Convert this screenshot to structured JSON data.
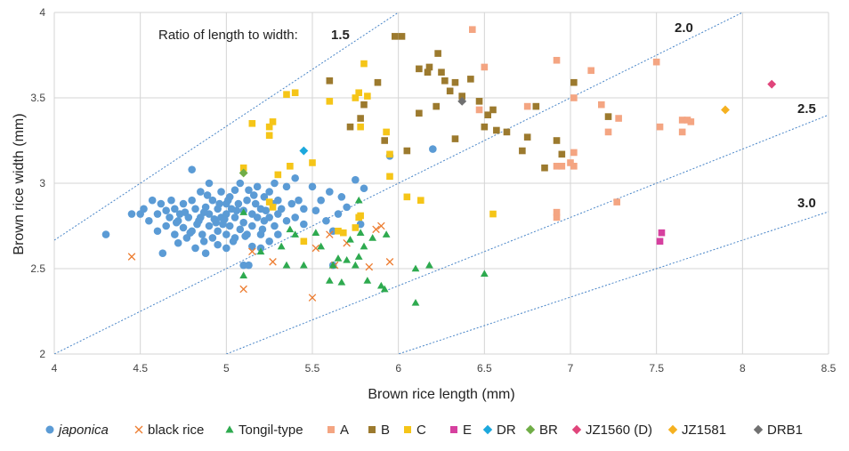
{
  "chart_data": {
    "type": "scatter",
    "xlabel": "Brown rice length (mm)",
    "ylabel": "Brown rice width (mm)",
    "xlim": [
      4,
      8.5
    ],
    "ylim": [
      2,
      4
    ],
    "xticks": [
      "4",
      "4.5",
      "5",
      "5.5",
      "6",
      "6.5",
      "7",
      "7.5",
      "8",
      "8.5"
    ],
    "yticks": [
      "2",
      "2.5",
      "3",
      "3.5",
      "4"
    ],
    "grid": true,
    "legend_position": "bottom",
    "ratio_prefix": "Ratio of length to width: ",
    "ratio_lines": [
      {
        "ratio": 1.5,
        "label": "1.5"
      },
      {
        "ratio": 2.0,
        "label": "2.0"
      },
      {
        "ratio": 2.5,
        "label": "2.5"
      },
      {
        "ratio": 3.0,
        "label": "3.0"
      }
    ],
    "series": [
      {
        "name": "japonica",
        "italic": true,
        "marker": "circle",
        "color": "#5B9BD5",
        "points": [
          [
            4.3,
            2.7
          ],
          [
            4.45,
            2.82
          ],
          [
            4.5,
            2.82
          ],
          [
            4.52,
            2.85
          ],
          [
            4.55,
            2.78
          ],
          [
            4.57,
            2.9
          ],
          [
            4.6,
            2.82
          ],
          [
            4.6,
            2.72
          ],
          [
            4.62,
            2.88
          ],
          [
            4.63,
            2.59
          ],
          [
            4.65,
            2.75
          ],
          [
            4.65,
            2.84
          ],
          [
            4.67,
            2.8
          ],
          [
            4.68,
            2.9
          ],
          [
            4.7,
            2.85
          ],
          [
            4.7,
            2.7
          ],
          [
            4.72,
            2.78
          ],
          [
            4.72,
            2.65
          ],
          [
            4.73,
            2.82
          ],
          [
            4.75,
            2.88
          ],
          [
            4.75,
            2.74
          ],
          [
            4.77,
            2.68
          ],
          [
            4.78,
            2.8
          ],
          [
            4.8,
            3.08
          ],
          [
            4.8,
            2.9
          ],
          [
            4.8,
            2.72
          ],
          [
            4.82,
            2.85
          ],
          [
            4.82,
            2.62
          ],
          [
            4.83,
            2.76
          ],
          [
            4.85,
            2.8
          ],
          [
            4.85,
            2.95
          ],
          [
            4.86,
            2.7
          ],
          [
            4.87,
            2.66
          ],
          [
            4.88,
            2.86
          ],
          [
            4.88,
            2.59
          ],
          [
            4.9,
            2.82
          ],
          [
            4.9,
            2.75
          ],
          [
            4.9,
            3.0
          ],
          [
            4.92,
            2.9
          ],
          [
            4.92,
            2.68
          ],
          [
            4.93,
            2.79
          ],
          [
            4.95,
            2.85
          ],
          [
            4.95,
            2.72
          ],
          [
            4.95,
            2.64
          ],
          [
            4.97,
            2.95
          ],
          [
            4.97,
            2.8
          ],
          [
            4.98,
            2.76
          ],
          [
            5.0,
            2.88
          ],
          [
            5.0,
            2.7
          ],
          [
            5.0,
            2.82
          ],
          [
            5.0,
            2.62
          ],
          [
            5.02,
            2.92
          ],
          [
            5.02,
            2.75
          ],
          [
            5.03,
            2.85
          ],
          [
            5.05,
            2.8
          ],
          [
            5.05,
            2.96
          ],
          [
            5.05,
            2.68
          ],
          [
            5.07,
            2.88
          ],
          [
            5.08,
            2.73
          ],
          [
            5.08,
            3.0
          ],
          [
            5.1,
            2.84
          ],
          [
            5.1,
            2.77
          ],
          [
            5.1,
            2.52
          ],
          [
            5.12,
            2.9
          ],
          [
            5.12,
            2.7
          ],
          [
            5.13,
            2.96
          ],
          [
            5.15,
            2.82
          ],
          [
            5.15,
            2.75
          ],
          [
            5.15,
            2.63
          ],
          [
            5.17,
            2.88
          ],
          [
            5.18,
            2.8
          ],
          [
            5.18,
            2.98
          ],
          [
            5.2,
            2.85
          ],
          [
            5.2,
            2.7
          ],
          [
            5.2,
            2.62
          ],
          [
            5.22,
            2.92
          ],
          [
            5.22,
            2.78
          ],
          [
            5.23,
            2.84
          ],
          [
            5.25,
            2.8
          ],
          [
            5.25,
            2.95
          ],
          [
            5.25,
            2.66
          ],
          [
            5.27,
            2.88
          ],
          [
            5.28,
            2.75
          ],
          [
            5.28,
            3.0
          ],
          [
            5.3,
            2.82
          ],
          [
            5.3,
            2.9
          ],
          [
            5.3,
            2.7
          ],
          [
            5.32,
            2.85
          ],
          [
            5.35,
            2.78
          ],
          [
            5.35,
            2.98
          ],
          [
            5.38,
            2.88
          ],
          [
            5.4,
            3.03
          ],
          [
            5.4,
            2.8
          ],
          [
            5.42,
            2.9
          ],
          [
            5.45,
            2.85
          ],
          [
            5.45,
            2.76
          ],
          [
            5.5,
            2.98
          ],
          [
            5.52,
            2.84
          ],
          [
            5.55,
            2.9
          ],
          [
            5.58,
            2.78
          ],
          [
            5.6,
            2.95
          ],
          [
            5.62,
            2.72
          ],
          [
            5.65,
            2.82
          ],
          [
            5.67,
            2.92
          ],
          [
            5.7,
            2.86
          ],
          [
            5.75,
            3.02
          ],
          [
            5.78,
            2.76
          ],
          [
            5.8,
            2.97
          ],
          [
            5.62,
            2.52
          ],
          [
            5.95,
            3.16
          ],
          [
            6.2,
            3.2
          ],
          [
            5.13,
            2.52
          ],
          [
            4.84,
            2.78
          ],
          [
            4.96,
            2.88
          ],
          [
            5.04,
            2.66
          ],
          [
            4.76,
            2.83
          ],
          [
            4.89,
            2.93
          ],
          [
            5.06,
            2.84
          ],
          [
            4.94,
            2.77
          ],
          [
            5.11,
            2.69
          ],
          [
            4.99,
            2.79
          ],
          [
            4.71,
            2.77
          ],
          [
            5.16,
            2.93
          ],
          [
            4.87,
            2.83
          ],
          [
            5.01,
            2.9
          ],
          [
            4.79,
            2.71
          ],
          [
            5.21,
            2.73
          ]
        ]
      },
      {
        "name": "black rice",
        "marker": "x",
        "color": "#ED7D31",
        "points": [
          [
            4.45,
            2.57
          ],
          [
            5.1,
            2.38
          ],
          [
            5.15,
            2.6
          ],
          [
            5.27,
            2.54
          ],
          [
            5.5,
            2.33
          ],
          [
            5.52,
            2.62
          ],
          [
            5.6,
            2.7
          ],
          [
            5.63,
            2.52
          ],
          [
            5.7,
            2.65
          ],
          [
            5.83,
            2.51
          ],
          [
            5.87,
            2.73
          ],
          [
            5.9,
            2.75
          ],
          [
            5.95,
            2.54
          ]
        ]
      },
      {
        "name": "Tongil-type",
        "marker": "triangle",
        "color": "#2EAA4F",
        "points": [
          [
            5.1,
            2.46
          ],
          [
            5.1,
            2.83
          ],
          [
            5.2,
            2.6
          ],
          [
            5.32,
            2.63
          ],
          [
            5.35,
            2.52
          ],
          [
            5.37,
            2.73
          ],
          [
            5.4,
            2.7
          ],
          [
            5.45,
            2.52
          ],
          [
            5.52,
            2.71
          ],
          [
            5.55,
            2.63
          ],
          [
            5.6,
            2.43
          ],
          [
            5.62,
            2.52
          ],
          [
            5.65,
            2.56
          ],
          [
            5.67,
            2.42
          ],
          [
            5.7,
            2.55
          ],
          [
            5.72,
            2.67
          ],
          [
            5.75,
            2.52
          ],
          [
            5.77,
            2.57
          ],
          [
            5.78,
            2.71
          ],
          [
            5.8,
            2.63
          ],
          [
            5.82,
            2.43
          ],
          [
            5.85,
            2.68
          ],
          [
            5.9,
            2.4
          ],
          [
            5.92,
            2.38
          ],
          [
            5.93,
            2.7
          ],
          [
            6.1,
            2.5
          ],
          [
            6.1,
            2.3
          ],
          [
            6.18,
            2.52
          ],
          [
            6.5,
            2.47
          ],
          [
            5.77,
            2.9
          ]
        ]
      },
      {
        "name": "A",
        "marker": "square",
        "color": "#F4A582",
        "points": [
          [
            6.43,
            3.9
          ],
          [
            6.5,
            3.68
          ],
          [
            6.47,
            3.43
          ],
          [
            6.75,
            3.45
          ],
          [
            6.92,
            3.72
          ],
          [
            7.02,
            3.5
          ],
          [
            7.12,
            3.66
          ],
          [
            7.18,
            3.46
          ],
          [
            7.22,
            3.3
          ],
          [
            7.28,
            3.38
          ],
          [
            7.27,
            2.89
          ],
          [
            6.92,
            3.1
          ],
          [
            6.95,
            3.1
          ],
          [
            7.0,
            3.12
          ],
          [
            7.02,
            3.18
          ],
          [
            7.02,
            3.1
          ],
          [
            6.92,
            2.8
          ],
          [
            6.92,
            2.83
          ],
          [
            7.5,
            3.71
          ],
          [
            7.52,
            3.33
          ],
          [
            7.65,
            3.3
          ],
          [
            7.65,
            3.37
          ],
          [
            7.68,
            3.37
          ],
          [
            7.7,
            3.36
          ]
        ]
      },
      {
        "name": "B",
        "marker": "square",
        "color": "#9C7A2E",
        "points": [
          [
            5.6,
            3.6
          ],
          [
            5.72,
            3.33
          ],
          [
            5.78,
            3.38
          ],
          [
            5.8,
            3.46
          ],
          [
            5.88,
            3.59
          ],
          [
            5.92,
            3.25
          ],
          [
            5.98,
            3.86
          ],
          [
            6.02,
            3.86
          ],
          [
            6.05,
            3.19
          ],
          [
            6.12,
            3.67
          ],
          [
            6.12,
            3.41
          ],
          [
            6.17,
            3.65
          ],
          [
            6.18,
            3.68
          ],
          [
            6.22,
            3.45
          ],
          [
            6.23,
            3.76
          ],
          [
            6.25,
            3.65
          ],
          [
            6.27,
            3.6
          ],
          [
            6.3,
            3.54
          ],
          [
            6.33,
            3.59
          ],
          [
            6.33,
            3.26
          ],
          [
            6.37,
            3.51
          ],
          [
            6.42,
            3.61
          ],
          [
            6.47,
            3.48
          ],
          [
            6.5,
            3.33
          ],
          [
            6.52,
            3.4
          ],
          [
            6.55,
            3.43
          ],
          [
            6.57,
            3.31
          ],
          [
            6.63,
            3.3
          ],
          [
            6.72,
            3.19
          ],
          [
            6.75,
            3.27
          ],
          [
            6.8,
            3.45
          ],
          [
            6.85,
            3.09
          ],
          [
            6.92,
            3.25
          ],
          [
            6.95,
            3.17
          ],
          [
            7.02,
            3.59
          ],
          [
            7.22,
            3.39
          ]
        ]
      },
      {
        "name": "C",
        "marker": "square",
        "color": "#F5C518",
        "points": [
          [
            5.1,
            3.09
          ],
          [
            5.15,
            3.35
          ],
          [
            5.25,
            3.28
          ],
          [
            5.25,
            3.33
          ],
          [
            5.27,
            3.36
          ],
          [
            5.3,
            3.05
          ],
          [
            5.35,
            3.52
          ],
          [
            5.4,
            3.53
          ],
          [
            5.37,
            3.1
          ],
          [
            5.5,
            3.12
          ],
          [
            5.6,
            3.48
          ],
          [
            5.75,
            3.5
          ],
          [
            5.77,
            3.53
          ],
          [
            5.8,
            3.7
          ],
          [
            5.82,
            3.51
          ],
          [
            5.78,
            3.33
          ],
          [
            5.93,
            3.3
          ],
          [
            5.95,
            3.17
          ],
          [
            5.95,
            3.04
          ],
          [
            6.05,
            2.92
          ],
          [
            6.13,
            2.9
          ],
          [
            6.55,
            2.82
          ],
          [
            5.25,
            2.89
          ],
          [
            5.27,
            2.86
          ],
          [
            5.45,
            2.66
          ],
          [
            5.65,
            2.72
          ],
          [
            5.68,
            2.71
          ],
          [
            5.75,
            2.74
          ],
          [
            5.77,
            2.8
          ],
          [
            5.78,
            2.81
          ]
        ]
      },
      {
        "name": "E",
        "marker": "square",
        "color": "#D6409F",
        "points": [
          [
            7.52,
            2.66
          ],
          [
            7.53,
            2.71
          ]
        ]
      },
      {
        "name": "DR",
        "marker": "diamond",
        "color": "#1CA8DD",
        "points": [
          [
            5.45,
            3.19
          ]
        ]
      },
      {
        "name": "BR",
        "marker": "diamond",
        "color": "#70AD47",
        "points": [
          [
            5.1,
            3.06
          ]
        ]
      },
      {
        "name": "JZ1560 (D)",
        "marker": "diamond",
        "color": "#E0457B",
        "points": [
          [
            8.17,
            3.58
          ]
        ]
      },
      {
        "name": "JZ1581",
        "marker": "diamond",
        "color": "#F5B120",
        "points": [
          [
            7.9,
            3.43
          ]
        ]
      },
      {
        "name": "DRB1",
        "marker": "diamond",
        "color": "#707070",
        "points": [
          [
            6.37,
            3.48
          ]
        ]
      }
    ]
  }
}
